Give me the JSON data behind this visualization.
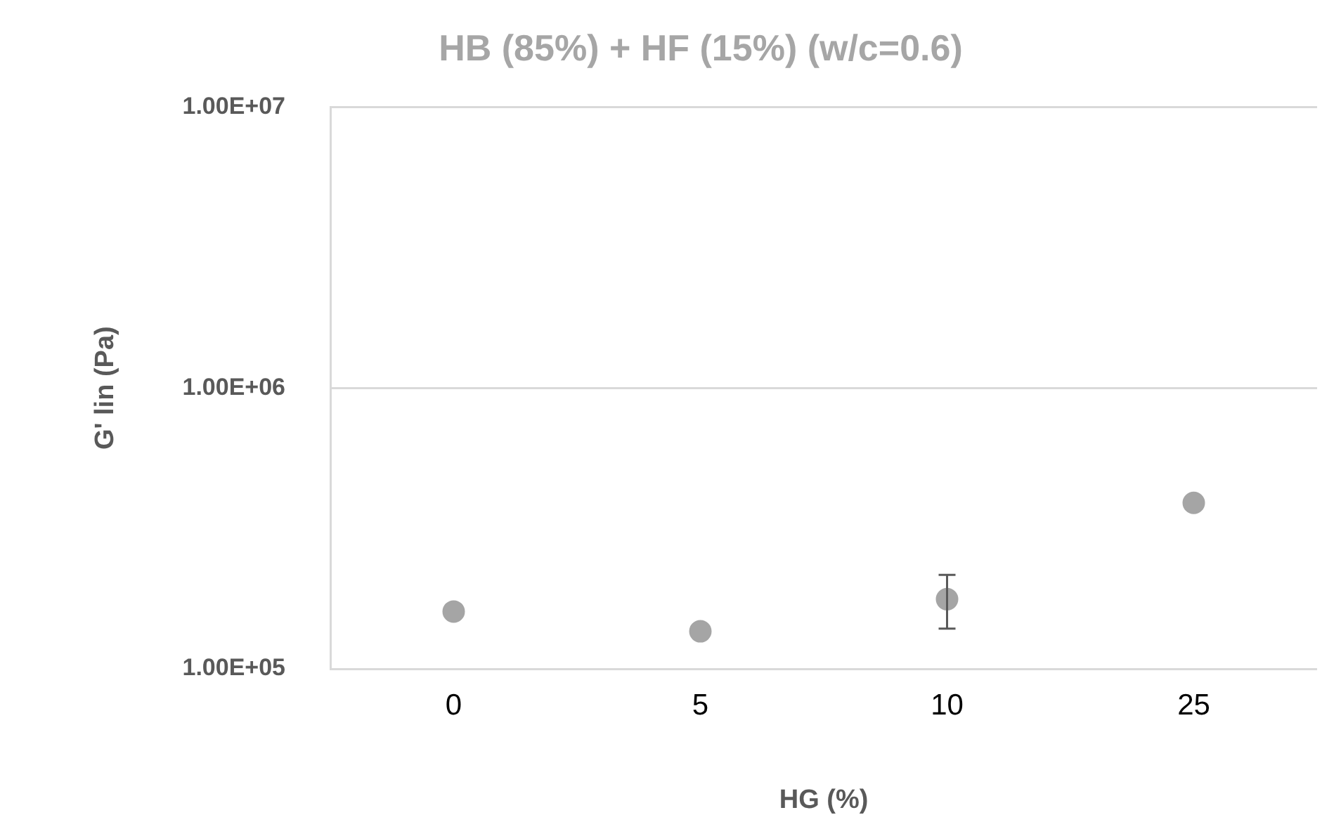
{
  "chart_data": {
    "type": "scatter",
    "title": "HB (85%) + HF (15%) (w/c=0.6)",
    "xlabel": "HG (%)",
    "ylabel": "G' lin (Pa)",
    "categories": [
      "0",
      "5",
      "10",
      "25"
    ],
    "series": [
      {
        "color": "#a5a5a5",
        "values": [
          160000,
          136000,
          177000,
          390000
        ],
        "errors": [
          null,
          null,
          [
            139000,
            216000
          ],
          null
        ]
      }
    ],
    "log": "y",
    "ylim": [
      100000,
      10000000
    ],
    "yticks": [
      {
        "value": 100000,
        "label": "1.00E+05"
      },
      {
        "value": 1000000,
        "label": "1.00E+06"
      },
      {
        "value": 10000000,
        "label": "1.00E+07"
      }
    ],
    "grid": "y",
    "legend": false,
    "marker": "circle"
  }
}
